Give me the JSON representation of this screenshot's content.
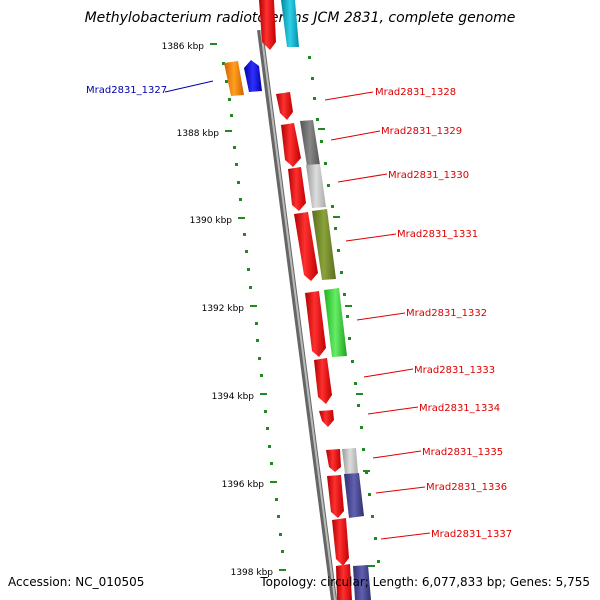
{
  "title": "Methylobacterium radiotolerans JCM 2831, complete genome",
  "footer": {
    "accession": "Accession: NC_010505",
    "summary": "Topology: circular; Length: 6,077,833 bp; Genes: 5,755"
  },
  "ticks": [
    {
      "label": "1386 kbp"
    },
    {
      "label": "1388 kbp"
    },
    {
      "label": "1390 kbp"
    },
    {
      "label": "1392 kbp"
    },
    {
      "label": "1394 kbp"
    },
    {
      "label": "1396 kbp"
    },
    {
      "label": "1398 kbp"
    }
  ],
  "genes": [
    {
      "name": "Mrad2831_1327",
      "color": "#0000aa",
      "side": "left"
    },
    {
      "name": "Mrad2831_1328",
      "color": "#dd0000",
      "side": "right"
    },
    {
      "name": "Mrad2831_1329",
      "color": "#dd0000",
      "side": "right"
    },
    {
      "name": "Mrad2831_1330",
      "color": "#dd0000",
      "side": "right"
    },
    {
      "name": "Mrad2831_1331",
      "color": "#dd0000",
      "side": "right"
    },
    {
      "name": "Mrad2831_1332",
      "color": "#dd0000",
      "side": "right"
    },
    {
      "name": "Mrad2831_1333",
      "color": "#dd0000",
      "side": "right"
    },
    {
      "name": "Mrad2831_1334",
      "color": "#dd0000",
      "side": "right"
    },
    {
      "name": "Mrad2831_1335",
      "color": "#dd0000",
      "side": "right"
    },
    {
      "name": "Mrad2831_1336",
      "color": "#dd0000",
      "side": "right"
    },
    {
      "name": "Mrad2831_1337",
      "color": "#dd0000",
      "side": "right"
    }
  ],
  "colors": {
    "cds_red": "#ee1111",
    "backbone": "#888888",
    "tick_green": "#228822"
  }
}
